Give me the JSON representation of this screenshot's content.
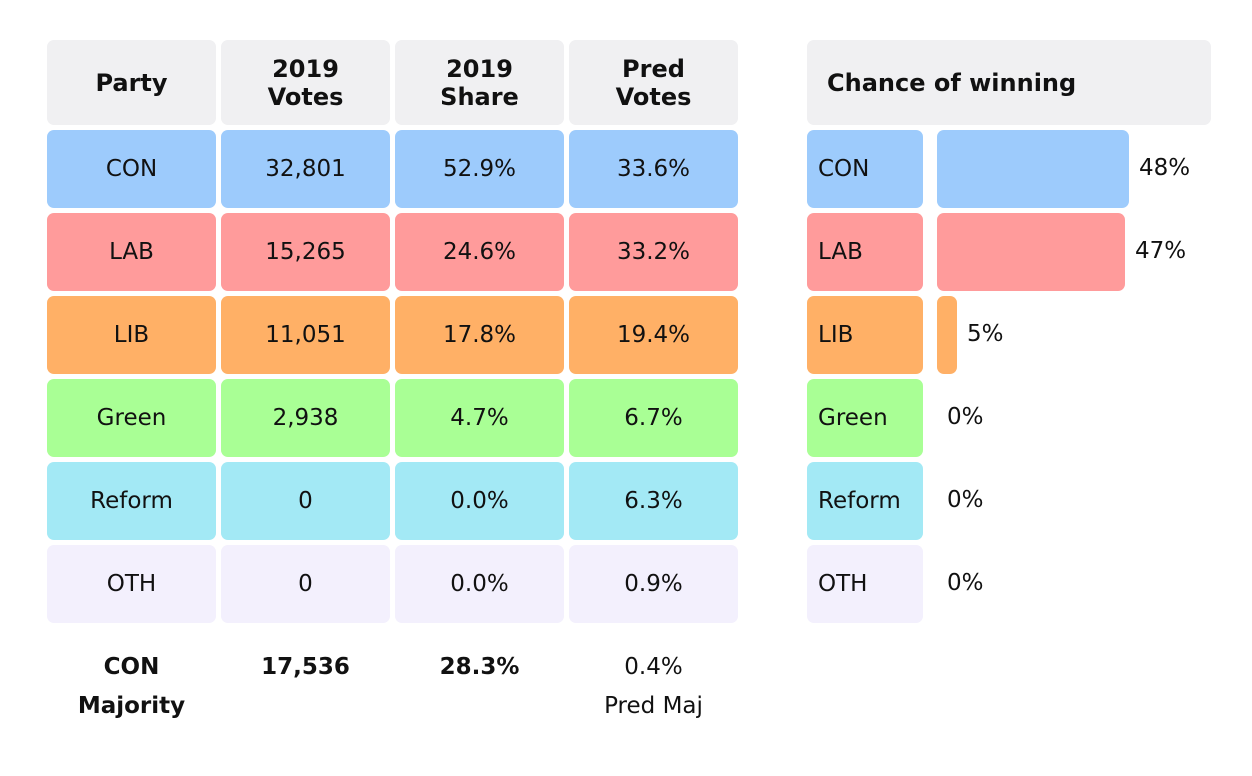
{
  "table": {
    "headers": [
      "Party",
      "2019 Votes",
      "2019 Share",
      "Pred Votes"
    ],
    "rows": [
      [
        "CON",
        "32,801",
        "52.9%",
        "33.6%"
      ],
      [
        "LAB",
        "15,265",
        "24.6%",
        "33.2%"
      ],
      [
        "LIB",
        "11,051",
        "17.8%",
        "19.4%"
      ],
      [
        "Green",
        "2,938",
        "4.7%",
        "6.7%"
      ],
      [
        "Reform",
        "0",
        "0.0%",
        "6.3%"
      ],
      [
        "OTH",
        "0",
        "0.0%",
        "0.9%"
      ]
    ],
    "row_colors": [
      "#9dcbfc",
      "#ff9b9b",
      "#ffb066",
      "#a9ff95",
      "#a3e9f5",
      "#f3f0fd"
    ],
    "footer": {
      "label": "CON Majority",
      "votes": "17,536",
      "share": "28.3%",
      "pred": "0.4%",
      "pred_label": "Pred Maj"
    }
  },
  "chance": {
    "title": "Chance of winning",
    "values": [
      48,
      47,
      5,
      0,
      0,
      0
    ],
    "value_labels": [
      "48%",
      "47%",
      "5%",
      "0%",
      "0%",
      "0%"
    ]
  }
}
